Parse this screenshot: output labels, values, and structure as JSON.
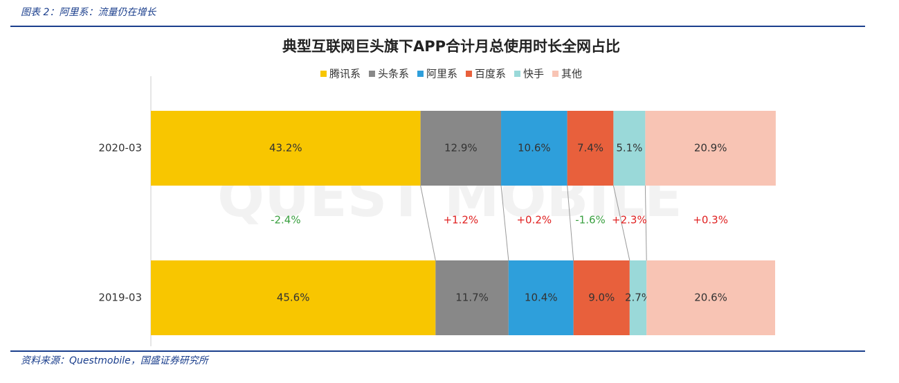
{
  "header": "图表 2：阿里系：流量仍在增长",
  "source": "资料来源：Questmobile，国盛证券研究所",
  "chart_data": {
    "type": "stacked-bar-horizontal",
    "title": "典型互联网巨头旗下APP合计月总使用时长全网占比",
    "watermark": "QUEST MOBILE",
    "categories": [
      "2020-03",
      "2019-03"
    ],
    "xlim": [
      0,
      100
    ],
    "legend": "top",
    "series": [
      {
        "name": "腾讯系",
        "color": "#f8c600",
        "values": [
          43.2,
          45.6
        ],
        "value_labels": [
          "43.2%",
          "45.6%"
        ]
      },
      {
        "name": "头条系",
        "color": "#888888",
        "values": [
          12.9,
          11.7
        ],
        "value_labels": [
          "12.9%",
          "11.7%"
        ]
      },
      {
        "name": "阿里系",
        "color": "#2e9fdb",
        "values": [
          10.6,
          10.4
        ],
        "value_labels": [
          "10.6%",
          "10.4%"
        ]
      },
      {
        "name": "百度系",
        "color": "#e8603c",
        "values": [
          7.4,
          9.0
        ],
        "value_labels": [
          "7.4%",
          "9.0%"
        ]
      },
      {
        "name": "快手",
        "color": "#9ad9d9",
        "values": [
          5.1,
          2.7
        ],
        "value_labels": [
          "5.1%",
          "2.7%"
        ]
      },
      {
        "name": "其他",
        "color": "#f8c4b4",
        "values": [
          20.9,
          20.6
        ],
        "value_labels": [
          "20.9%",
          "20.6%"
        ]
      }
    ],
    "changes": {
      "values": [
        -2.4,
        1.2,
        0.2,
        -1.6,
        2.3,
        0.3
      ],
      "value_labels": [
        "-2.4%",
        "+1.2%",
        "+0.2%",
        "-1.6%",
        "+2.3%",
        "+0.3%"
      ],
      "positive_color": "#e02020",
      "negative_color": "#3aa040"
    }
  }
}
